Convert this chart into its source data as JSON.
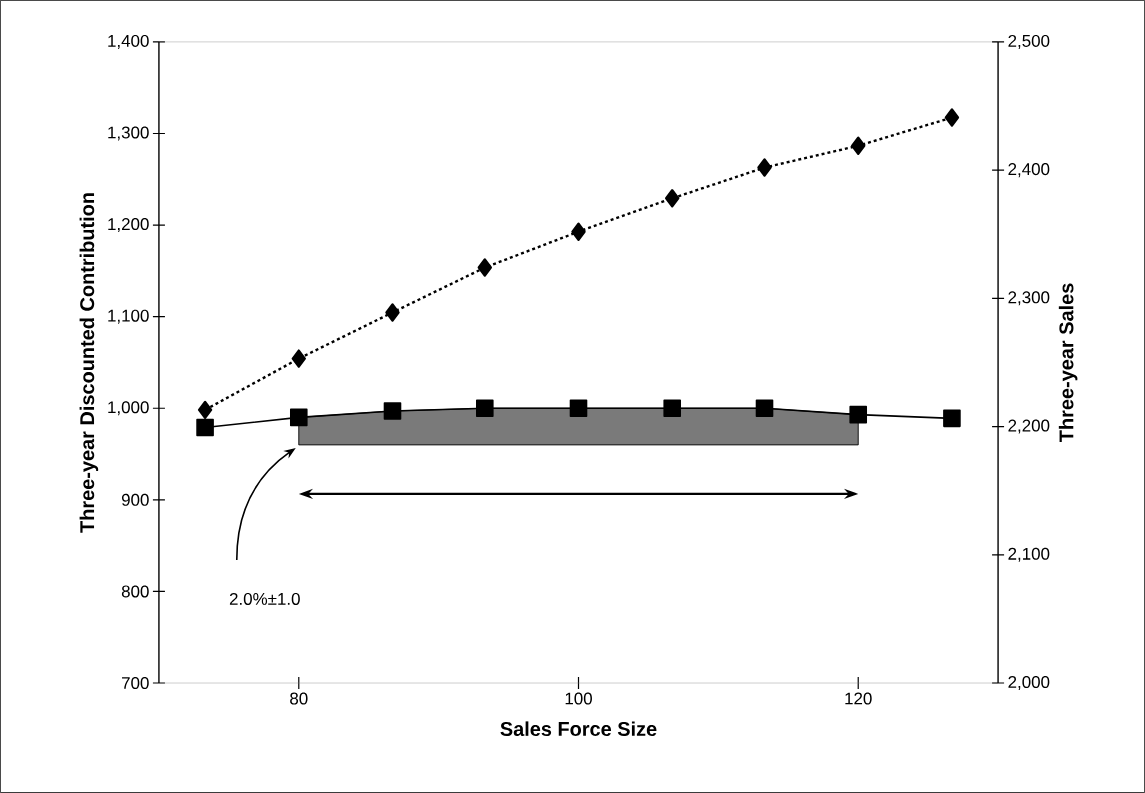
{
  "chart_data": {
    "type": "line",
    "xlabel": "Sales Force Size",
    "ylabel": "Three-year Discounted Contribution",
    "y2label": "Three-year Sales",
    "series": [
      {
        "color": "#000000",
        "marker": "diamond",
        "line_style": "dashed",
        "axis": "y2",
        "x": [
          73.3,
          80,
          86.7,
          93.3,
          100,
          106.7,
          113.3,
          120,
          126.7
        ],
        "values": [
          2213,
          2253,
          2289,
          2324,
          2352,
          2378,
          2402,
          2419,
          2441
        ]
      },
      {
        "color": "#000000",
        "marker": "square",
        "line_style": "solid",
        "x": [
          73.3,
          80,
          86.7,
          93.3,
          100,
          106.7,
          113.3,
          120,
          126.7
        ],
        "values": [
          979,
          990,
          997,
          1000,
          1000,
          1000,
          1000,
          993,
          989
        ],
        "lower": [
          null,
          960,
          960,
          960,
          960,
          960,
          960,
          960,
          null
        ],
        "upper": [
          null,
          990,
          997,
          1000,
          1000,
          1000,
          1000,
          993,
          null
        ]
      }
    ],
    "xlim": [
      70,
      130
    ],
    "xticks": [
      80,
      100,
      120
    ],
    "ylim": [
      700,
      1400
    ],
    "yticks": [
      {
        "value": 700,
        "label": "700"
      },
      {
        "value": 800,
        "label": "800"
      },
      {
        "value": 900,
        "label": "900"
      },
      {
        "value": 1000,
        "label": "1,000"
      },
      {
        "value": 1100,
        "label": "1,100"
      },
      {
        "value": 1200,
        "label": "1,200"
      },
      {
        "value": 1300,
        "label": "1,300"
      },
      {
        "value": 1400,
        "label": "1,400"
      }
    ],
    "y2lim": [
      2000,
      2500
    ],
    "y2ticks": [
      {
        "value": 2000,
        "label": "2,000"
      },
      {
        "value": 2100,
        "label": "2,100"
      },
      {
        "value": 2200,
        "label": "2,200"
      },
      {
        "value": 2300,
        "label": "2,300"
      },
      {
        "value": 2400,
        "label": "2,400"
      },
      {
        "value": 2500,
        "label": "2,500"
      }
    ],
    "annotations": [
      "2.0%±1.0"
    ],
    "tick_labels": true
  }
}
